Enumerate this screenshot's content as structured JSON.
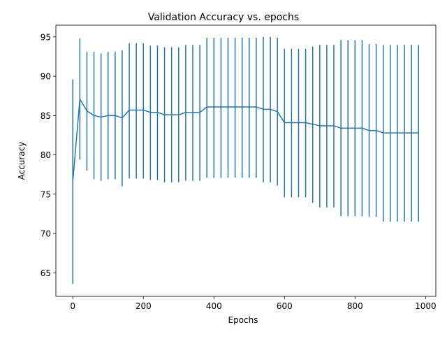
{
  "chart_data": {
    "type": "line",
    "title": "Validation Accuracy vs. epochs",
    "xlabel": "Epochs",
    "ylabel": "Accuracy",
    "xlim": [
      -48,
      1029
    ],
    "ylim": [
      62,
      96.5
    ],
    "xticks": [
      0,
      200,
      400,
      600,
      800,
      1000
    ],
    "yticks": [
      65,
      70,
      75,
      80,
      85,
      90,
      95
    ],
    "grid": false,
    "legend": "none",
    "series": [
      {
        "color": "#1f77b4",
        "x": [
          0,
          20,
          40,
          60,
          80,
          100,
          120,
          140,
          160,
          180,
          200,
          220,
          240,
          260,
          280,
          300,
          320,
          340,
          360,
          380,
          400,
          420,
          440,
          460,
          480,
          500,
          520,
          540,
          560,
          580,
          600,
          620,
          640,
          660,
          680,
          700,
          720,
          740,
          760,
          780,
          800,
          820,
          840,
          860,
          880,
          900,
          920,
          940,
          960,
          980
        ],
        "y": [
          76.6,
          87.1,
          85.6,
          85.0,
          84.8,
          85.0,
          85.0,
          84.7,
          85.7,
          85.7,
          85.7,
          85.4,
          85.4,
          85.1,
          85.1,
          85.1,
          85.4,
          85.4,
          85.4,
          86.1,
          86.1,
          86.1,
          86.1,
          86.1,
          86.1,
          86.1,
          86.1,
          85.8,
          85.8,
          85.5,
          84.1,
          84.1,
          84.1,
          84.1,
          83.9,
          83.7,
          83.7,
          83.7,
          83.4,
          83.4,
          83.4,
          83.4,
          83.1,
          83.1,
          82.8,
          82.8,
          82.8,
          82.8,
          82.8,
          82.8
        ],
        "err_low": [
          63.6,
          79.4,
          78.0,
          76.9,
          76.7,
          76.9,
          76.9,
          76.0,
          77.0,
          77.0,
          77.0,
          76.8,
          76.8,
          76.5,
          76.5,
          76.5,
          76.7,
          76.7,
          76.7,
          77.1,
          77.1,
          77.1,
          77.1,
          77.1,
          77.1,
          77.1,
          77.1,
          76.5,
          76.5,
          76.1,
          74.6,
          74.6,
          74.6,
          74.6,
          73.9,
          73.3,
          73.3,
          73.3,
          72.2,
          72.2,
          72.2,
          72.2,
          72.1,
          72.1,
          71.5,
          71.5,
          71.5,
          71.5,
          71.5,
          71.5
        ],
        "err_high": [
          89.6,
          94.8,
          93.1,
          93.1,
          92.9,
          93.1,
          93.1,
          93.3,
          94.2,
          94.2,
          94.2,
          93.9,
          93.9,
          93.7,
          93.7,
          93.7,
          94.0,
          94.0,
          94.0,
          94.9,
          94.9,
          94.9,
          94.9,
          94.9,
          94.9,
          94.9,
          94.9,
          95.0,
          95.0,
          94.9,
          93.5,
          93.5,
          93.5,
          93.5,
          93.8,
          94.0,
          94.0,
          94.0,
          94.6,
          94.6,
          94.6,
          94.6,
          94.1,
          94.1,
          94.0,
          94.0,
          94.0,
          94.0,
          94.0,
          94.0
        ]
      }
    ]
  }
}
